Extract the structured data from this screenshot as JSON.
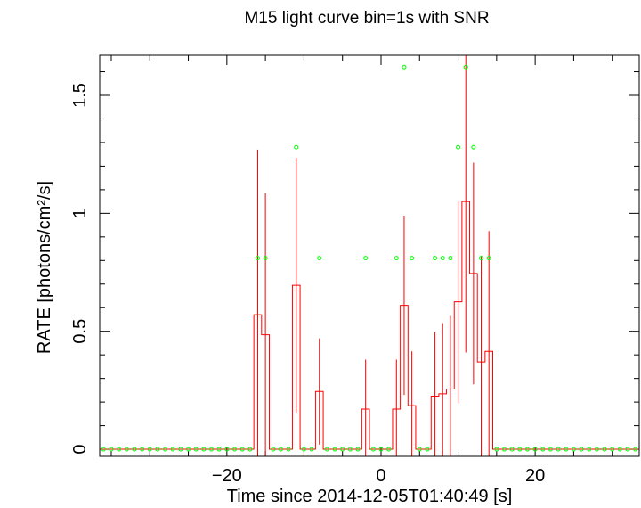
{
  "chart_data": {
    "type": "line",
    "title": "M15 light curve bin=1s with SNR",
    "xlabel": "Time since 2014-12-05T01:40:49 [s]",
    "ylabel": "RATE [photons/cm²/s]",
    "xlim": [
      -36.5,
      33.5
    ],
    "ylim": [
      -0.03,
      1.67
    ],
    "x_ticks": [
      -20,
      0,
      20
    ],
    "x_tick_labels": [
      "−20",
      "0",
      "20"
    ],
    "y_ticks": [
      0,
      0.5,
      1,
      1.5
    ],
    "y_tick_labels": [
      "0",
      "0.5",
      "1",
      "1.5"
    ],
    "grid": false,
    "series": [
      {
        "color": "#ff0000",
        "style": "histogram-step-with-errorbars",
        "bin_width": 1,
        "x": [
          -36,
          -35,
          -34,
          -33,
          -32,
          -31,
          -30,
          -29,
          -28,
          -27,
          -26,
          -25,
          -24,
          -23,
          -22,
          -21,
          -20,
          -19,
          -18,
          -17,
          -16,
          -15,
          -14,
          -13,
          -12,
          -11,
          -10,
          -9,
          -8,
          -7,
          -6,
          -5,
          -4,
          -3,
          -2,
          -1,
          0,
          1,
          2,
          3,
          4,
          5,
          6,
          7,
          8,
          9,
          10,
          11,
          12,
          13,
          14,
          15,
          16,
          17,
          18,
          19,
          20,
          21,
          22,
          23,
          24,
          25,
          26,
          27,
          28,
          29,
          30,
          31,
          32,
          33
        ],
        "y": [
          0,
          0,
          0,
          0,
          0,
          0,
          0,
          0,
          0,
          0,
          0,
          0,
          0,
          0,
          0,
          0,
          0,
          0,
          0,
          0,
          0.57,
          0.485,
          0,
          0,
          0,
          0.695,
          0,
          0,
          0.245,
          0,
          0,
          0,
          0,
          0,
          0.17,
          0,
          0,
          0,
          0.17,
          0.61,
          0.185,
          0,
          0,
          0.225,
          0.235,
          0.255,
          0.625,
          1.05,
          0.745,
          0.37,
          0.415,
          0,
          0,
          0,
          0,
          0,
          0,
          0,
          0,
          0,
          0,
          0,
          0,
          0,
          0,
          0,
          0,
          0,
          0,
          0
        ],
        "yerr": [
          0,
          0,
          0,
          0,
          0,
          0,
          0,
          0,
          0,
          0,
          0,
          0,
          0,
          0,
          0,
          0,
          0,
          0,
          0,
          0,
          0.7,
          0.6,
          0,
          0,
          0,
          0.54,
          0,
          0,
          0.225,
          0,
          0,
          0,
          0,
          0,
          0.21,
          0,
          0,
          0,
          0.21,
          0.38,
          0.23,
          0,
          0,
          0.27,
          0.3,
          0.31,
          0.43,
          0.64,
          0.47,
          0.45,
          0.51,
          0,
          0,
          0,
          0,
          0,
          0,
          0,
          0,
          0,
          0,
          0,
          0,
          0,
          0,
          0,
          0,
          0,
          0,
          0
        ]
      },
      {
        "color": "#00ff00",
        "style": "open-circle-markers",
        "points": [
          [
            -36,
            0
          ],
          [
            -35,
            0
          ],
          [
            -34,
            0
          ],
          [
            -33,
            0
          ],
          [
            -32,
            0
          ],
          [
            -31,
            0
          ],
          [
            -30,
            0
          ],
          [
            -29,
            0
          ],
          [
            -28,
            0
          ],
          [
            -27,
            0
          ],
          [
            -26,
            0
          ],
          [
            -25,
            0
          ],
          [
            -24,
            0
          ],
          [
            -23,
            0
          ],
          [
            -22,
            0
          ],
          [
            -21,
            0
          ],
          [
            -20,
            0
          ],
          [
            -19,
            0
          ],
          [
            -18,
            0
          ],
          [
            -17,
            0
          ],
          [
            -16,
            0.81
          ],
          [
            -15,
            0.81
          ],
          [
            -14,
            0
          ],
          [
            -13,
            0
          ],
          [
            -12,
            0
          ],
          [
            -11,
            1.28
          ],
          [
            -10,
            0
          ],
          [
            -9,
            0
          ],
          [
            -8,
            0.81
          ],
          [
            -7,
            0
          ],
          [
            -6,
            0
          ],
          [
            -5,
            0
          ],
          [
            -4,
            0
          ],
          [
            -3,
            0
          ],
          [
            -2,
            0.81
          ],
          [
            -1,
            0
          ],
          [
            0,
            0
          ],
          [
            1,
            0
          ],
          [
            2,
            0.81
          ],
          [
            3,
            1.62
          ],
          [
            4,
            0.81
          ],
          [
            5,
            0
          ],
          [
            6,
            0
          ],
          [
            7,
            0.81
          ],
          [
            8,
            0.81
          ],
          [
            9,
            0.81
          ],
          [
            10,
            1.28
          ],
          [
            11,
            1.62
          ],
          [
            12,
            1.28
          ],
          [
            13,
            0.81
          ],
          [
            14,
            0.81
          ],
          [
            15,
            0
          ],
          [
            16,
            0
          ],
          [
            17,
            0
          ],
          [
            18,
            0
          ],
          [
            19,
            0
          ],
          [
            20,
            0
          ],
          [
            21,
            0
          ],
          [
            22,
            0
          ],
          [
            23,
            0
          ],
          [
            24,
            0
          ],
          [
            25,
            0
          ],
          [
            26,
            0
          ],
          [
            27,
            0
          ],
          [
            28,
            0
          ],
          [
            29,
            0
          ],
          [
            30,
            0
          ],
          [
            31,
            0
          ],
          [
            32,
            0
          ],
          [
            33,
            0
          ]
        ]
      }
    ]
  }
}
